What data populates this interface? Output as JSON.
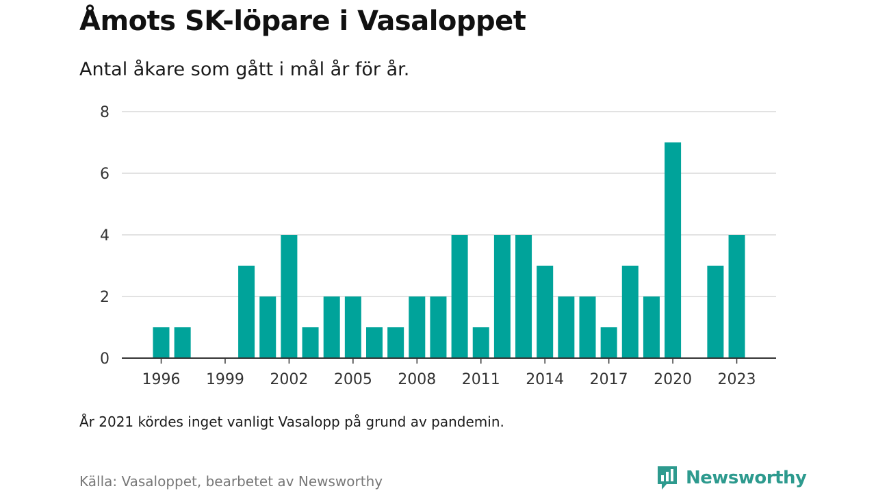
{
  "title": "Åmots SK-löpare i Vasaloppet",
  "subtitle": "Antal åkare som gått i mål år för år.",
  "note": "År 2021 kördes inget vanligt Vasalopp på grund av pandemin.",
  "source": "Källa: Vasaloppet, bearbetet av Newsworthy",
  "brand": {
    "name": "Newsworthy",
    "icon": "newsworthy-logo-icon",
    "color": "#2d9a8e"
  },
  "chart_data": {
    "type": "bar",
    "x": [
      1996,
      1997,
      1998,
      1999,
      2000,
      2001,
      2002,
      2003,
      2004,
      2005,
      2006,
      2007,
      2008,
      2009,
      2010,
      2011,
      2012,
      2013,
      2014,
      2015,
      2016,
      2017,
      2018,
      2019,
      2020,
      2021,
      2022,
      2023
    ],
    "values": [
      1,
      1,
      0,
      0,
      3,
      2,
      4,
      1,
      2,
      2,
      1,
      1,
      2,
      2,
      4,
      1,
      4,
      4,
      3,
      2,
      2,
      1,
      3,
      2,
      7,
      0,
      3,
      4
    ],
    "x_ticks": [
      "1996",
      "1999",
      "2002",
      "2005",
      "2008",
      "2011",
      "2014",
      "2017",
      "2020",
      "2023"
    ],
    "y_ticks": [
      "0",
      "2",
      "4",
      "6",
      "8"
    ],
    "ylim": [
      0,
      8
    ],
    "grid": true,
    "bar_color": "#00a39a"
  }
}
